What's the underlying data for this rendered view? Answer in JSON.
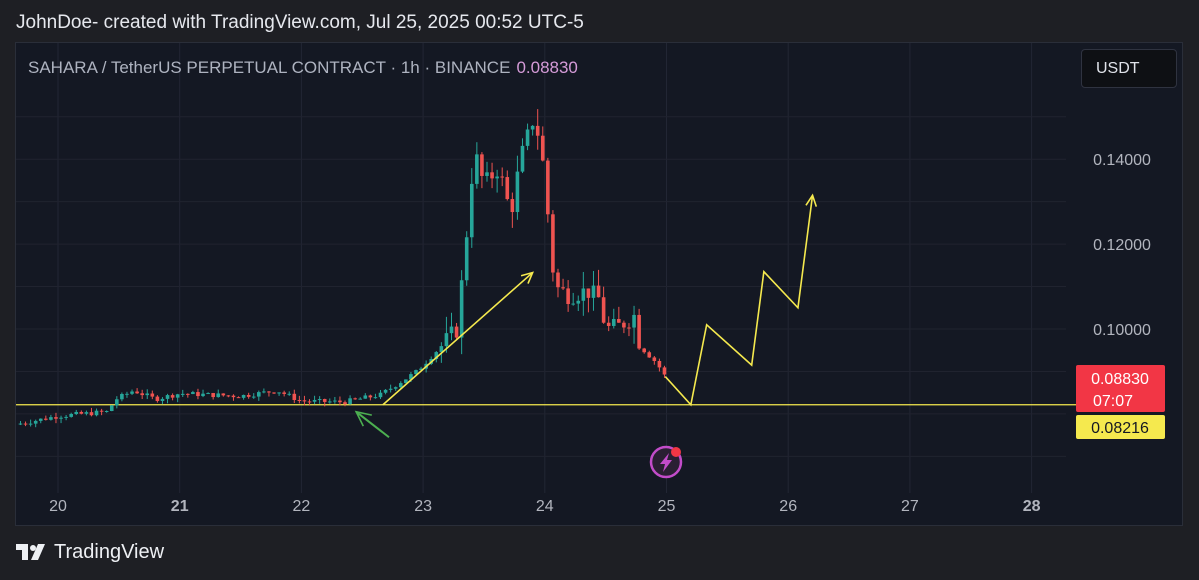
{
  "header": {
    "caption": "JohnDoe- created with TradingView.com, Jul 25, 2025 00:52 UTC-5"
  },
  "symbol": {
    "title": "SAHARA / TetherUS PERPETUAL CONTRACT · 1h · BINANCE",
    "last_price": "0.08830"
  },
  "currency_button": {
    "label": "USDT"
  },
  "footer": {
    "brand": "TradingView"
  },
  "colors": {
    "up": "#26a69a",
    "down": "#ef5350",
    "annotation_yellow": "#f5e94e",
    "annotation_green": "#4caf50",
    "price_tag_bg": "#f23645",
    "level_tag_bg": "#f5e94e",
    "flash_icon": "#c24cc9"
  },
  "chart_data": {
    "type": "candlestick",
    "timeframe": "1h",
    "x_tick_labels": [
      "20",
      "21",
      "22",
      "23",
      "24",
      "25",
      "26",
      "27",
      "28"
    ],
    "x_tick_bold": [
      false,
      true,
      false,
      false,
      false,
      false,
      false,
      false,
      true
    ],
    "y_tick_labels": [
      "0.14000",
      "0.12000",
      "0.10000"
    ],
    "y_ticks": [
      0.14,
      0.12,
      0.1
    ],
    "ylim": [
      0.069,
      0.1465
    ],
    "xlim": [
      19.65,
      28.45
    ],
    "grid": true,
    "price_tag": {
      "price": "0.08830",
      "countdown": "07:07",
      "value": 0.0883
    },
    "level_tag": {
      "price": "0.08216",
      "value": 0.08216
    },
    "support_line": {
      "value": 0.08216,
      "x_start": 19.65,
      "x_end": 28.45
    },
    "candles_source_path": [
      [
        19.65,
        0.0775
      ],
      [
        20.0,
        0.0795
      ],
      [
        20.4,
        0.0805
      ],
      [
        20.48,
        0.0835
      ],
      [
        20.62,
        0.0855
      ],
      [
        20.8,
        0.0835
      ],
      [
        21.0,
        0.0848
      ],
      [
        21.5,
        0.0842
      ],
      [
        21.8,
        0.0855
      ],
      [
        22.0,
        0.083
      ],
      [
        22.35,
        0.0828
      ],
      [
        22.65,
        0.0845
      ],
      [
        22.95,
        0.09
      ],
      [
        23.15,
        0.096
      ],
      [
        23.28,
        0.1
      ],
      [
        23.35,
        0.12
      ],
      [
        23.42,
        0.142
      ],
      [
        23.5,
        0.134
      ],
      [
        23.62,
        0.138
      ],
      [
        23.72,
        0.127
      ],
      [
        23.8,
        0.14
      ],
      [
        23.9,
        0.149
      ],
      [
        23.96,
        0.145
      ],
      [
        24.0,
        0.135
      ],
      [
        24.08,
        0.11
      ],
      [
        24.2,
        0.108
      ],
      [
        24.35,
        0.109
      ],
      [
        24.45,
        0.107
      ],
      [
        24.5,
        0.1
      ],
      [
        24.6,
        0.1005
      ],
      [
        24.75,
        0.1035
      ],
      [
        24.78,
        0.096
      ],
      [
        24.92,
        0.092
      ],
      [
        25.0,
        0.0883
      ]
    ],
    "annotations": [
      {
        "type": "arrow",
        "color": "yellow",
        "points": [
          [
            22.67,
            0.08216
          ],
          [
            23.9,
            0.1133
          ]
        ]
      },
      {
        "type": "path-arrow",
        "color": "yellow",
        "points": [
          [
            24.99,
            0.0888
          ],
          [
            25.2,
            0.08216
          ],
          [
            25.33,
            0.101
          ],
          [
            25.7,
            0.0915
          ],
          [
            25.8,
            0.1135
          ],
          [
            26.08,
            0.105
          ],
          [
            26.2,
            0.1315
          ]
        ]
      },
      {
        "type": "arrow",
        "color": "green",
        "points": [
          [
            22.72,
            0.0745
          ],
          [
            22.45,
            0.0805
          ]
        ]
      }
    ]
  }
}
